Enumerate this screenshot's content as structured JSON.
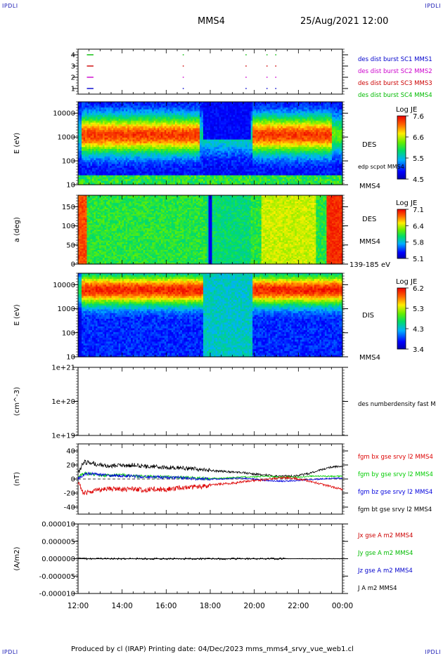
{
  "header": {
    "corner_label": "IPDLI",
    "spacecraft": "MMS4",
    "datetime": "25/Aug/2021 12:00"
  },
  "footer": {
    "text": "Produced by cl (IRAP)   Printing date: 04/Dec/2023   mms_mms4_srvy_vue_web1.cl"
  },
  "colors": {
    "mms1": "#0000cc",
    "mms2": "#cc00cc",
    "mms3": "#cc0000",
    "mms4": "#00bb00",
    "bx": "#dd0000",
    "by": "#00cc00",
    "bz": "#0000dd",
    "bt": "#000000"
  },
  "chart_data": [
    {
      "type": "scatter",
      "panel": "burst availability",
      "y_ticks": [
        "4",
        "3",
        "2",
        "1"
      ],
      "ylim": [
        0.5,
        4.5
      ],
      "legend": [
        {
          "label": "des dist burst SC1 MMS1",
          "color": "#0000cc"
        },
        {
          "label": "des dist burst SC2 MMS2",
          "color": "#cc00cc"
        },
        {
          "label": "des dist burst SC3 MMS3",
          "color": "#cc0000"
        },
        {
          "label": "des dist burst SC4 MMS4",
          "color": "#00bb00"
        }
      ],
      "segments_hours": [
        [
          0.4,
          0.7
        ],
        [
          4.75,
          4.8
        ],
        [
          7.6,
          7.65
        ],
        [
          8.55,
          8.6
        ],
        [
          8.95,
          9.0
        ]
      ]
    },
    {
      "type": "heatmap",
      "panel": "DES energy spectrogram",
      "ylabel": "E (eV)",
      "y_ticks": [
        "10000",
        "1000",
        "100",
        "10"
      ],
      "yscale": "log",
      "ylim": [
        10,
        30000
      ],
      "colorbar": {
        "title": "Log JE",
        "ticks": [
          "7.6",
          "6.6",
          "5.5",
          "4.5"
        ],
        "range": [
          4.5,
          7.6
        ]
      },
      "labels": [
        "DES",
        "edp scpot MMS4",
        "MMS4"
      ]
    },
    {
      "type": "heatmap",
      "panel": "DES pitch angle",
      "ylabel": "a (deg)",
      "y_ticks": [
        "150",
        "100",
        "50",
        "0"
      ],
      "ylim": [
        0,
        180
      ],
      "colorbar": {
        "title": "Log JE",
        "ticks": [
          "7.1",
          "6.4",
          "5.8",
          "5.1"
        ],
        "range": [
          5.1,
          7.1
        ]
      },
      "labels": [
        "DES",
        "MMS4",
        "139-185 eV"
      ]
    },
    {
      "type": "heatmap",
      "panel": "DIS energy spectrogram",
      "ylabel": "E (eV)",
      "y_ticks": [
        "10000",
        "1000",
        "100",
        "10"
      ],
      "yscale": "log",
      "ylim": [
        10,
        30000
      ],
      "colorbar": {
        "title": "Log JE",
        "ticks": [
          "6.2",
          "5.3",
          "4.3",
          "3.4"
        ],
        "range": [
          3.4,
          6.2
        ]
      },
      "labels": [
        "DIS",
        "MMS4"
      ]
    },
    {
      "type": "line",
      "panel": "density",
      "ylabel": "(cm^-3)",
      "y_ticks": [
        "1e+21",
        "1e+20",
        "1e+19"
      ],
      "yscale": "log",
      "legend": [
        "des numberdensity fast M"
      ]
    },
    {
      "type": "line",
      "panel": "magnetic field",
      "ylabel": "(nT)",
      "y_ticks": [
        "40",
        "20",
        "0",
        "-20",
        "-40"
      ],
      "ylim": [
        -50,
        50
      ],
      "x_hours": [
        0,
        0.25,
        0.5,
        1,
        1.5,
        2,
        2.5,
        3,
        3.5,
        4,
        4.5,
        5,
        5.5,
        6,
        6.5,
        7,
        7.5,
        8,
        8.5,
        9,
        9.5,
        10,
        10.5,
        11,
        11.5,
        12
      ],
      "series": [
        {
          "name": "fgm bx gse srvy l2 MMS4",
          "color": "#dd0000",
          "values": [
            -5,
            -20,
            -18,
            -15,
            -14,
            -15,
            -14,
            -16,
            -14,
            -15,
            -13,
            -12,
            -11,
            -9,
            -7,
            -6,
            -4,
            -2,
            -1,
            1,
            2,
            0,
            -3,
            -7,
            -11,
            -15
          ]
        },
        {
          "name": "fgm by gse srvy l2 MMS4",
          "color": "#00cc00",
          "values": [
            2,
            8,
            7,
            5,
            5,
            6,
            4,
            4,
            3,
            3,
            3,
            2,
            1,
            1,
            1,
            2,
            3,
            3,
            4,
            3,
            3,
            3,
            4,
            4,
            4,
            4
          ]
        },
        {
          "name": "fgm bz gse srvy l2 MMS4",
          "color": "#0000dd",
          "values": [
            1,
            6,
            8,
            6,
            5,
            5,
            4,
            3,
            3,
            2,
            2,
            1,
            0,
            0,
            0,
            1,
            1,
            0,
            -2,
            -3,
            -3,
            -2,
            -1,
            0,
            1,
            1
          ]
        },
        {
          "name": "fgm bt gse srvy l2 MMS4",
          "color": "#000000",
          "values": [
            8,
            24,
            23,
            20,
            19,
            19,
            20,
            18,
            18,
            17,
            16,
            15,
            14,
            12,
            11,
            10,
            9,
            7,
            6,
            4,
            4,
            5,
            8,
            13,
            17,
            18
          ]
        }
      ]
    },
    {
      "type": "line",
      "panel": "current density",
      "ylabel": "(A/m2)",
      "y_ticks": [
        "0.000010",
        "0.000005",
        "0.000000",
        "-0.000005",
        "-0.000010"
      ],
      "ylim": [
        -1e-05,
        1e-05
      ],
      "legend": [
        {
          "label": "Jx gse A m2 MMS4",
          "color": "#cc0000"
        },
        {
          "label": "Jy gse A m2 MMS4",
          "color": "#00bb00"
        },
        {
          "label": "Jz gse A m2 MMS4",
          "color": "#0000cc"
        },
        {
          "label": "J A m2 MMS4",
          "color": "#000000"
        }
      ]
    }
  ],
  "x_axis": {
    "ticks": [
      "12:00",
      "14:00",
      "16:00",
      "18:00",
      "20:00",
      "22:00",
      "00:00"
    ],
    "range_hours": [
      0,
      12
    ]
  }
}
